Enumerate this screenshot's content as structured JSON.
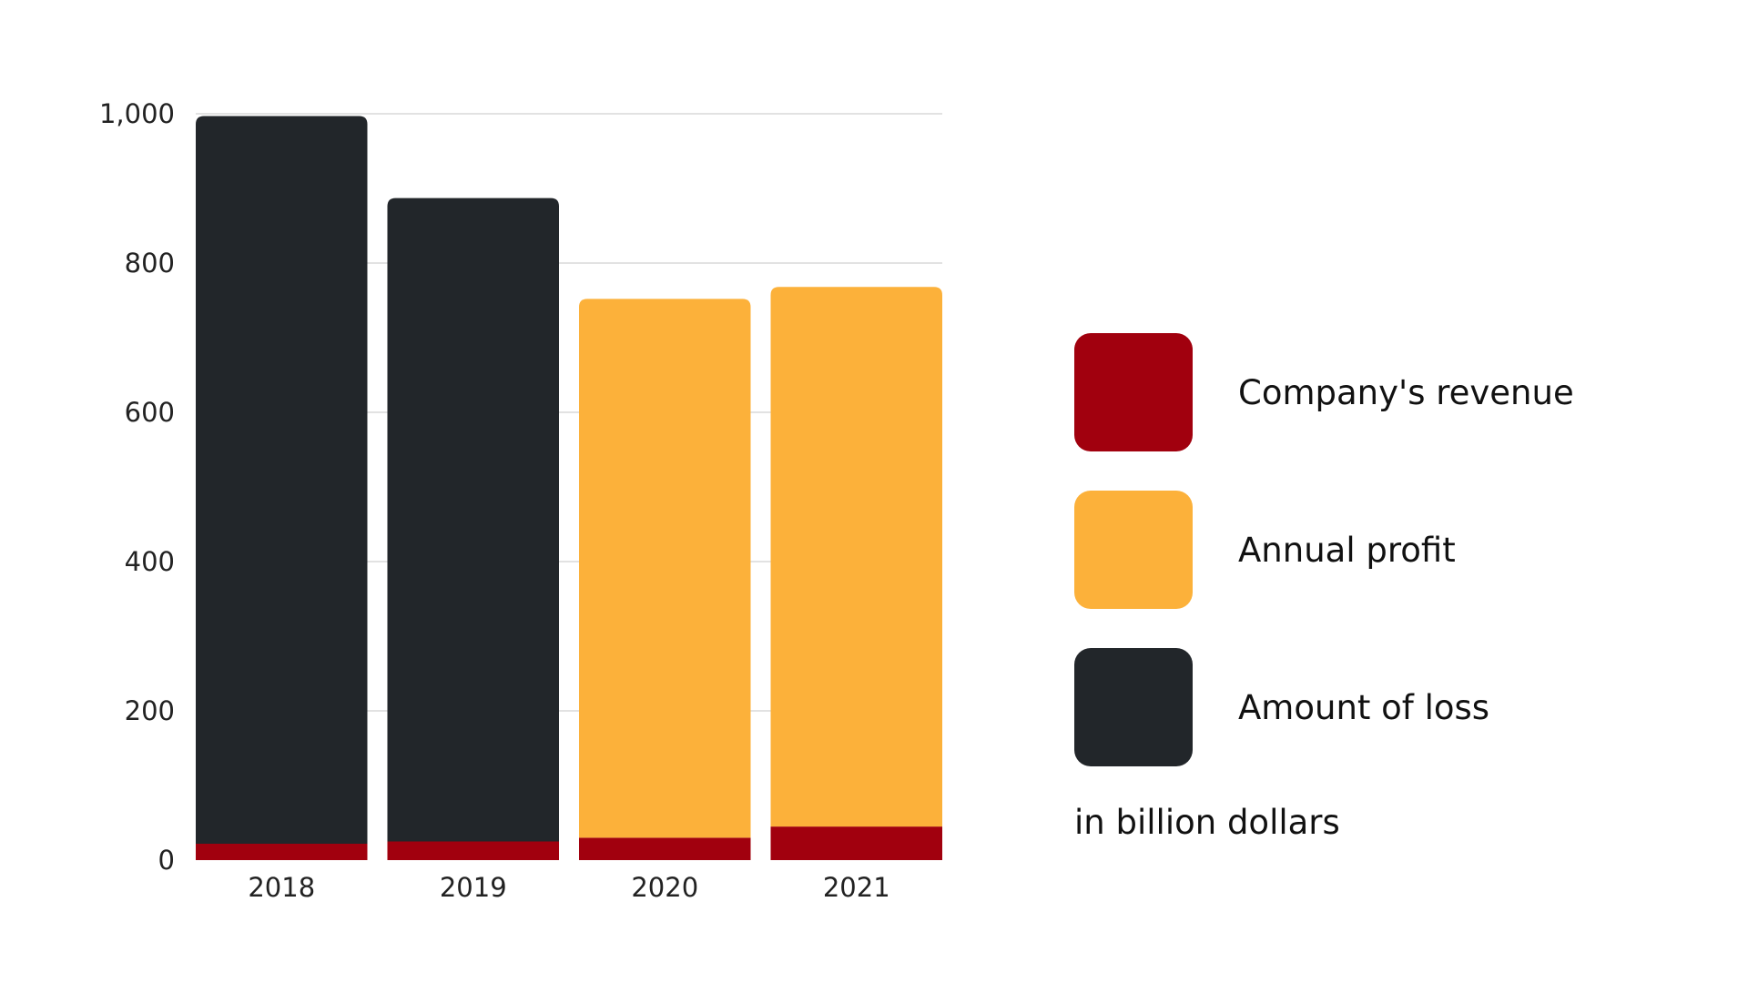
{
  "chart_data": {
    "type": "bar",
    "stacked": true,
    "categories": [
      "2018",
      "2019",
      "2020",
      "2021"
    ],
    "series": [
      {
        "name": "Company's revenue",
        "color": "#a1000e",
        "values": [
          22,
          25,
          30,
          45
        ]
      },
      {
        "name": "Annual profit",
        "color": "#fcb13a",
        "values": [
          0,
          0,
          722,
          723
        ]
      },
      {
        "name": "Amount of loss",
        "color": "#22262a",
        "values": [
          975,
          862,
          0,
          0
        ]
      }
    ],
    "ylim": [
      0,
      1000
    ],
    "yticks": [
      0,
      200,
      400,
      600,
      800,
      1000
    ],
    "ytick_labels": [
      "0",
      "200",
      "400",
      "600",
      "800",
      "1,000"
    ],
    "grid": true,
    "legend_position": "right",
    "unit_note": "in billion dollars"
  },
  "legend": {
    "items": [
      {
        "label": "Company's revenue",
        "color": "#a1000e",
        "icon": "square-swatch"
      },
      {
        "label": "Annual profit",
        "color": "#fcb13a",
        "icon": "square-swatch"
      },
      {
        "label": "Amount of loss",
        "color": "#22262a",
        "icon": "square-swatch"
      }
    ],
    "note": "in billion dollars"
  }
}
